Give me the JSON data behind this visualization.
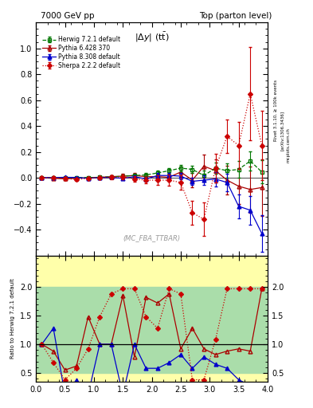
{
  "title_left": "7000 GeV pp",
  "title_right": "Top (parton level)",
  "plot_label": "(MC_FBA_TTBAR)",
  "right_label1": "Rivet 3.1.10, ≥ 100k events",
  "right_label2": "[arXiv:1306.3436]",
  "right_label3": "mcplots.cern.ch",
  "xlim": [
    0,
    4
  ],
  "ylim_main": [
    -0.6,
    1.2
  ],
  "ylim_ratio": [
    0.35,
    2.55
  ],
  "yticks_main": [
    -0.4,
    -0.2,
    0.0,
    0.2,
    0.4,
    0.6,
    0.8,
    1.0
  ],
  "yticks_ratio": [
    0.5,
    1.0,
    1.5,
    2.0
  ],
  "herwig_x": [
    0.1,
    0.3,
    0.5,
    0.7,
    0.9,
    1.1,
    1.3,
    1.5,
    1.7,
    1.9,
    2.1,
    2.3,
    2.5,
    2.7,
    2.9,
    3.1,
    3.3,
    3.5,
    3.7,
    3.9
  ],
  "herwig_y": [
    0.001,
    0.001,
    0.003,
    0.002,
    0.002,
    0.004,
    0.008,
    0.012,
    0.018,
    0.022,
    0.038,
    0.055,
    0.075,
    0.065,
    0.018,
    0.075,
    0.055,
    0.065,
    0.13,
    0.045
  ],
  "herwig_yerr": [
    0.004,
    0.004,
    0.004,
    0.004,
    0.004,
    0.006,
    0.007,
    0.009,
    0.009,
    0.013,
    0.018,
    0.022,
    0.022,
    0.027,
    0.036,
    0.045,
    0.055,
    0.065,
    0.075,
    0.09
  ],
  "herwig_color": "#007700",
  "herwig_label": "Herwig 7.2.1 default",
  "pythia6_x": [
    0.1,
    0.3,
    0.5,
    0.7,
    0.9,
    1.1,
    1.3,
    1.5,
    1.7,
    1.9,
    2.1,
    2.3,
    2.5,
    2.7,
    2.9,
    3.1,
    3.3,
    3.5,
    3.7,
    3.9
  ],
  "pythia6_y": [
    0.001,
    -0.004,
    -0.008,
    -0.004,
    0.001,
    0.004,
    0.009,
    0.013,
    0.018,
    0.009,
    0.009,
    0.004,
    0.045,
    -0.018,
    0.09,
    0.055,
    -0.018,
    -0.065,
    -0.09,
    -0.075
  ],
  "pythia6_yerr": [
    0.004,
    0.006,
    0.007,
    0.006,
    0.007,
    0.009,
    0.013,
    0.018,
    0.022,
    0.018,
    0.022,
    0.027,
    0.045,
    0.055,
    0.09,
    0.09,
    0.11,
    0.14,
    0.18,
    0.22
  ],
  "pythia6_color": "#aa0000",
  "pythia6_label": "Pythia 6.428 370",
  "pythia8_x": [
    0.1,
    0.3,
    0.5,
    0.7,
    0.9,
    1.1,
    1.3,
    1.5,
    1.7,
    1.9,
    2.1,
    2.3,
    2.5,
    2.7,
    2.9,
    3.1,
    3.3,
    3.5,
    3.7,
    3.9
  ],
  "pythia8_y": [
    0.001,
    0.002,
    0.004,
    0.003,
    -0.004,
    0.002,
    0.004,
    -0.004,
    0.009,
    -0.009,
    0.018,
    0.018,
    0.013,
    -0.027,
    -0.018,
    -0.009,
    -0.036,
    -0.22,
    -0.25,
    -0.43
  ],
  "pythia8_yerr": [
    0.003,
    0.004,
    0.004,
    0.003,
    0.004,
    0.006,
    0.007,
    0.009,
    0.011,
    0.013,
    0.018,
    0.022,
    0.022,
    0.027,
    0.036,
    0.055,
    0.065,
    0.09,
    0.11,
    0.14
  ],
  "pythia8_color": "#0000cc",
  "pythia8_label": "Pythia 8.308 default",
  "sherpa_x": [
    0.1,
    0.3,
    0.5,
    0.7,
    0.9,
    1.1,
    1.3,
    1.5,
    1.7,
    1.9,
    2.1,
    2.3,
    2.5,
    2.7,
    2.9,
    3.1,
    3.3,
    3.5,
    3.7,
    3.9
  ],
  "sherpa_y": [
    0.001,
    0.001,
    -0.004,
    -0.013,
    -0.004,
    0.001,
    0.004,
    0.009,
    -0.009,
    -0.018,
    -0.018,
    -0.018,
    -0.036,
    -0.27,
    -0.32,
    0.075,
    0.32,
    0.25,
    0.65,
    0.25
  ],
  "sherpa_yerr": [
    0.004,
    0.007,
    0.009,
    0.009,
    0.009,
    0.011,
    0.013,
    0.018,
    0.022,
    0.027,
    0.036,
    0.045,
    0.055,
    0.09,
    0.13,
    0.11,
    0.13,
    0.18,
    0.36,
    0.27
  ],
  "sherpa_color": "#cc0000",
  "sherpa_label": "Sherpa 2.2.2 default",
  "ratio_pythia6_y": [
    1.0,
    0.88,
    0.55,
    0.62,
    1.48,
    1.0,
    1.0,
    1.85,
    0.78,
    1.82,
    1.72,
    1.88,
    0.92,
    1.28,
    0.92,
    0.82,
    0.88,
    0.92,
    0.88,
    1.97
  ],
  "ratio_pythia8_y": [
    1.0,
    1.28,
    0.12,
    0.38,
    0.12,
    1.0,
    1.0,
    0.12,
    1.0,
    0.58,
    0.58,
    0.68,
    0.82,
    0.58,
    0.78,
    0.65,
    0.58,
    0.38,
    0.28,
    0.28
  ],
  "ratio_sherpa_y": [
    1.0,
    0.68,
    0.38,
    0.58,
    0.92,
    1.48,
    1.88,
    1.97,
    1.97,
    1.48,
    1.28,
    1.97,
    1.88,
    0.38,
    0.38,
    1.08,
    1.97,
    1.97,
    1.97,
    1.97
  ],
  "bg_green": "#aaddaa",
  "bg_yellow": "#ffffaa"
}
